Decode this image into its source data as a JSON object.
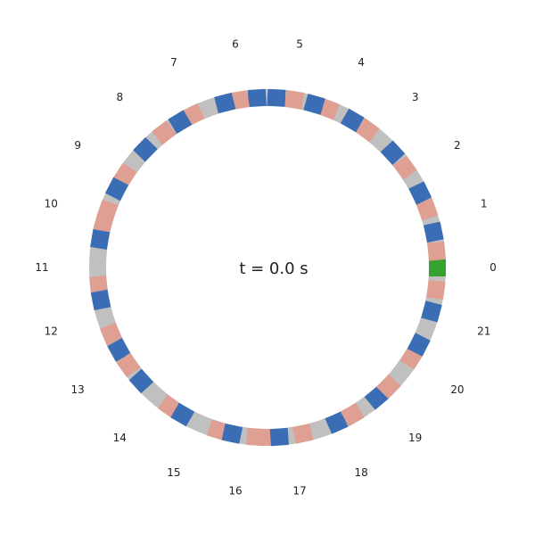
{
  "time_label": "t = 0.0 s",
  "colors": {
    "track": "#c0c0c0",
    "background": "#ffffff",
    "vehicle_blue": "#3a6db4",
    "vehicle_pink": "#dfa093",
    "vehicle_green": "#36a230",
    "text": "#222222"
  },
  "section_labels": [
    "0",
    "1",
    "2",
    "3",
    "4",
    "5",
    "6",
    "7",
    "8",
    "9",
    "10",
    "11",
    "12",
    "13",
    "14",
    "15",
    "16",
    "17",
    "18",
    "19",
    "20",
    "21"
  ],
  "vehicles": [
    {
      "angle": 0.0,
      "color": "green"
    },
    {
      "angle": 5.5,
      "color": "pink"
    },
    {
      "angle": 12.0,
      "color": "blue"
    },
    {
      "angle": 20.0,
      "color": "pink"
    },
    {
      "angle": 26.0,
      "color": "blue"
    },
    {
      "angle": 36.0,
      "color": "pink"
    },
    {
      "angle": 42.5,
      "color": "blue"
    },
    {
      "angle": 54.0,
      "color": "pink"
    },
    {
      "angle": 60.0,
      "color": "blue"
    },
    {
      "angle": 69.0,
      "color": "pink"
    },
    {
      "angle": 74.0,
      "color": "blue"
    },
    {
      "angle": 81.0,
      "color": "pink"
    },
    {
      "angle": 87.0,
      "color": "blue"
    },
    {
      "angle": 93.5,
      "color": "blue"
    },
    {
      "angle": 99.5,
      "color": "pink"
    },
    {
      "angle": 104.5,
      "color": "blue"
    },
    {
      "angle": 116.0,
      "color": "pink"
    },
    {
      "angle": 121.0,
      "color": "blue"
    },
    {
      "angle": 127.5,
      "color": "pink"
    },
    {
      "angle": 136.0,
      "color": "blue"
    },
    {
      "angle": 147.0,
      "color": "pink"
    },
    {
      "angle": 152.5,
      "color": "blue"
    },
    {
      "angle": 160.5,
      "color": "pink"
    },
    {
      "angle": 165.0,
      "color": "pink"
    },
    {
      "angle": 170.5,
      "color": "blue"
    },
    {
      "angle": 186.0,
      "color": "pink"
    },
    {
      "angle": 191.0,
      "color": "blue"
    },
    {
      "angle": 203.0,
      "color": "pink"
    },
    {
      "angle": 209.0,
      "color": "blue"
    },
    {
      "angle": 215.0,
      "color": "pink"
    },
    {
      "angle": 222.0,
      "color": "blue"
    },
    {
      "angle": 235.0,
      "color": "pink"
    },
    {
      "angle": 240.0,
      "color": "blue"
    },
    {
      "angle": 253.0,
      "color": "pink"
    },
    {
      "angle": 258.0,
      "color": "blue"
    },
    {
      "angle": 266.0,
      "color": "pink"
    },
    {
      "angle": 269.5,
      "color": "pink"
    },
    {
      "angle": 274.0,
      "color": "blue"
    },
    {
      "angle": 282.0,
      "color": "pink"
    },
    {
      "angle": 294.0,
      "color": "blue"
    },
    {
      "angle": 300.0,
      "color": "pink"
    },
    {
      "angle": 310.0,
      "color": "blue"
    },
    {
      "angle": 315.5,
      "color": "pink"
    },
    {
      "angle": 328.0,
      "color": "pink"
    },
    {
      "angle": 333.0,
      "color": "blue"
    },
    {
      "angle": 345.0,
      "color": "blue"
    },
    {
      "angle": 352.5,
      "color": "pink"
    }
  ]
}
